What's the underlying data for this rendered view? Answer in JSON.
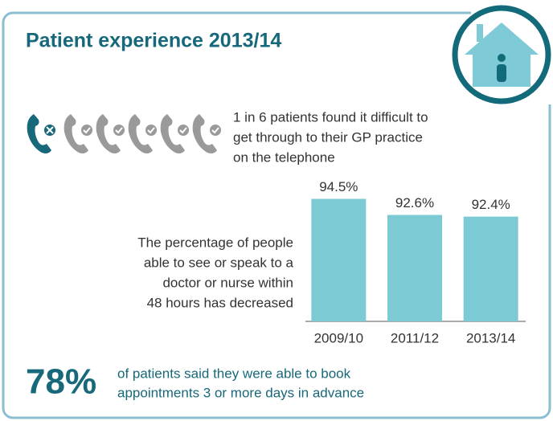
{
  "title": "Patient experience 2013/14",
  "phone_text": [
    "1 in 6 patients found it difficult to",
    "get through to their GP practice",
    "on the telephone"
  ],
  "chart_text": [
    "The percentage of people",
    "able to see or speak to a",
    "doctor or nurse within",
    "48 hours has decreased"
  ],
  "big_stat": "78%",
  "big_stat_text": [
    "of patients said they were able to book",
    "appointments 3 or more days in advance"
  ],
  "chart_data": {
    "type": "bar",
    "categories": [
      "2009/10",
      "2011/12",
      "2013/14"
    ],
    "values": [
      94.5,
      92.6,
      92.4
    ],
    "value_labels": [
      "94.5%",
      "92.6%",
      "92.4%"
    ],
    "color": "#7ccbd4",
    "ylim": [
      80,
      95.5
    ]
  }
}
